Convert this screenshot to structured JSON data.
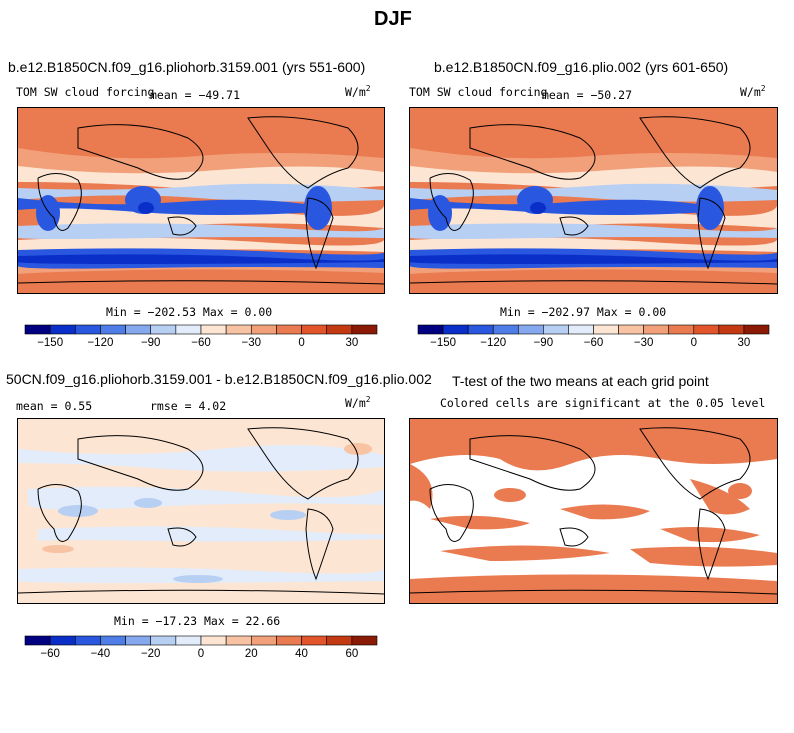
{
  "title": "DJF",
  "panels": [
    {
      "id": "p1",
      "title": "b.e12.B1850CN.f09_g16.pliohorb.3159.001 (yrs 551-600)",
      "left_label": "TOM SW cloud forcing",
      "mean_label": "mean = −49.71",
      "units_base": "W/m",
      "units_exp": "2",
      "stats": "Min = −202.53  Max =    0.00"
    },
    {
      "id": "p2",
      "title": "b.e12.B1850CN.f09_g16.plio.002 (yrs 601-650)",
      "left_label": "TOM SW cloud forcing",
      "mean_label": "mean = −50.27",
      "units_base": "W/m",
      "units_exp": "2",
      "stats": "Min = −202.97  Max =    0.00"
    },
    {
      "id": "p3",
      "title": "50CN.f09_g16.pliohorb.3159.001 - b.e12.B1850CN.f09_g16.plio.002",
      "left_label": "mean =    0.55",
      "mean_label": "rmse =    4.02",
      "units_base": "W/m",
      "units_exp": "2",
      "stats": "Min = −17.23  Max =  22.66"
    },
    {
      "id": "p4",
      "title": "T-test of the two means at each grid point",
      "left_label": "Colored cells are significant at the 0.05 level"
    }
  ],
  "colorbars": [
    {
      "id": "cb1",
      "colors": [
        "#000080",
        "#0a2fc8",
        "#2a57e0",
        "#4f7de8",
        "#86a8ee",
        "#b8cff4",
        "#e2ecfa",
        "#fde5d3",
        "#f8c3a3",
        "#f1a07a",
        "#ea7a4f",
        "#e2552b",
        "#c33a12",
        "#8a1a05"
      ],
      "ticks": [
        "−150",
        "−120",
        "−90",
        "−60",
        "−30",
        "0",
        "30"
      ]
    },
    {
      "id": "cb2",
      "colors": [
        "#000080",
        "#0a2fc8",
        "#2a57e0",
        "#4f7de8",
        "#86a8ee",
        "#b8cff4",
        "#e2ecfa",
        "#fde5d3",
        "#f8c3a3",
        "#f1a07a",
        "#ea7a4f",
        "#e2552b",
        "#c33a12",
        "#8a1a05"
      ],
      "ticks": [
        "−150",
        "−120",
        "−90",
        "−60",
        "−30",
        "0",
        "30"
      ]
    },
    {
      "id": "cb3",
      "colors": [
        "#000080",
        "#0a2fc8",
        "#2a57e0",
        "#4f7de8",
        "#86a8ee",
        "#b8cff4",
        "#e2ecfa",
        "#fde5d3",
        "#f8c3a3",
        "#f1a07a",
        "#ea7a4f",
        "#e2552b",
        "#c33a12",
        "#8a1a05"
      ],
      "ticks": [
        "−60",
        "−40",
        "−20",
        "0",
        "20",
        "40",
        "60"
      ]
    }
  ],
  "chart_data": [
    {
      "type": "heatmap",
      "title": "b.e12.B1850CN.f09_g16.pliohorb.3159.001 (yrs 551-600)",
      "variable": "TOM SW cloud forcing",
      "units": "W/m2",
      "mean": -49.71,
      "min": -202.53,
      "max": 0.0,
      "color_range": [
        -165,
        45
      ],
      "tick_values": [
        -150,
        -120,
        -90,
        -60,
        -30,
        0,
        30
      ]
    },
    {
      "type": "heatmap",
      "title": "b.e12.B1850CN.f09_g16.plio.002 (yrs 601-650)",
      "variable": "TOM SW cloud forcing",
      "units": "W/m2",
      "mean": -50.27,
      "min": -202.97,
      "max": 0.0,
      "color_range": [
        -165,
        45
      ],
      "tick_values": [
        -150,
        -120,
        -90,
        -60,
        -30,
        0,
        30
      ]
    },
    {
      "type": "heatmap",
      "title": "50CN.f09_g16.pliohorb.3159.001 - b.e12.B1850CN.f09_g16.plio.002",
      "units": "W/m2",
      "mean": 0.55,
      "rmse": 4.02,
      "min": -17.23,
      "max": 22.66,
      "tick_values": [
        -60,
        -40,
        -20,
        0,
        20,
        40,
        60
      ]
    },
    {
      "type": "heatmap",
      "title": "T-test of the two means at each grid point",
      "note": "Colored cells are significant at the 0.05 level",
      "significance_level": 0.05
    }
  ]
}
